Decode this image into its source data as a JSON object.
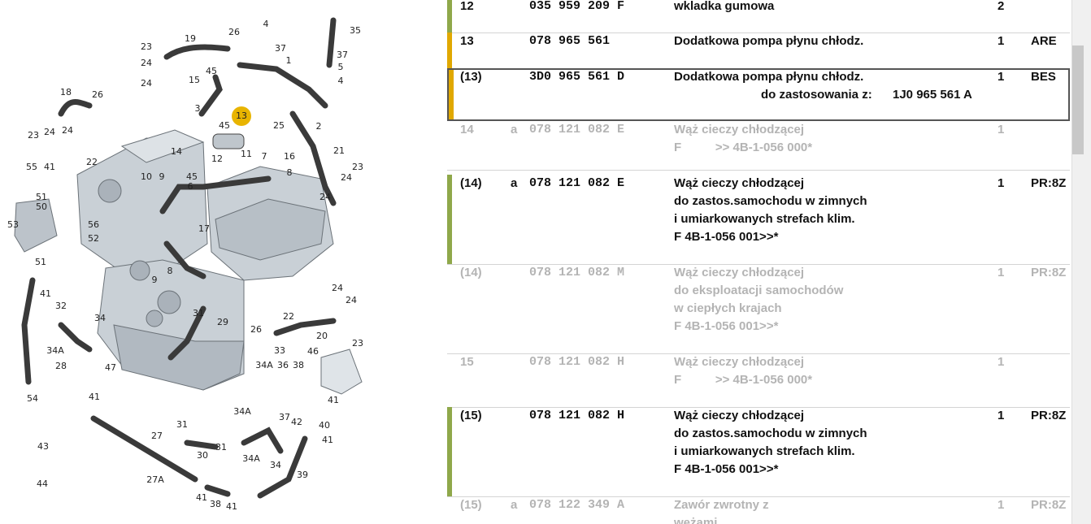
{
  "diagram": {
    "callouts": [
      "23",
      "19",
      "26",
      "4",
      "35",
      "37",
      "37",
      "1",
      "5",
      "24",
      "24",
      "45",
      "15",
      "4",
      "3",
      "13",
      "2",
      "25",
      "18",
      "26",
      "24",
      "24",
      "23",
      "22",
      "45",
      "14",
      "12",
      "7",
      "11",
      "16",
      "21",
      "10",
      "9",
      "45",
      "6",
      "8",
      "55",
      "41",
      "51",
      "50",
      "53",
      "56",
      "52",
      "51",
      "24",
      "23",
      "24",
      "17",
      "41",
      "8",
      "9",
      "32",
      "34",
      "31",
      "29",
      "24",
      "24",
      "22",
      "26",
      "20",
      "23",
      "34A",
      "33",
      "46",
      "28",
      "34A",
      "36",
      "38",
      "47",
      "54",
      "41",
      "37",
      "41",
      "42",
      "40",
      "41",
      "34A",
      "31",
      "31",
      "30",
      "34A",
      "34",
      "27",
      "39",
      "43",
      "44",
      "27A",
      "41",
      "38",
      "41"
    ]
  },
  "table": {
    "rows": [
      {
        "pos": "12",
        "part": "035 959 209 F",
        "desc": [
          "wkladka gumowa"
        ],
        "qty": "2"
      },
      {
        "pos": "13",
        "part": "078 965 561",
        "desc": [
          "Dodatkowa pompa płynu chłodz."
        ],
        "qty": "1",
        "remark": "ARE"
      },
      {
        "pos": "(13)",
        "part": "3D0 965 561 D",
        "desc": [
          "Dodatkowa pompa płynu chłodz."
        ],
        "usage_label": "do zastosowania z:",
        "usage_part": "1J0 965 561 A",
        "qty": "1",
        "remark": "BES"
      },
      {
        "pos": "14",
        "flag": "a",
        "part": "078 121 082 E",
        "desc": [
          "Wąż cieczy chłodzącej",
          "F          >> 4B-1-056 000*"
        ],
        "qty": "1"
      },
      {
        "pos": "(14)",
        "flag": "a",
        "part": "078 121 082 E",
        "desc": [
          "Wąż cieczy chłodzącej",
          "do zastos.samochodu w zimnych",
          "i umiarkowanych strefach klim.",
          "F 4B-1-056 001>>*"
        ],
        "qty": "1",
        "remark": "PR:8Z"
      },
      {
        "pos": "(14)",
        "part": "078 121 082 M",
        "desc": [
          "Wąż cieczy chłodzącej",
          "do eksploatacji samochodów",
          "w ciepłych krajach",
          "F 4B-1-056 001>>*"
        ],
        "qty": "1",
        "remark": "PR:8Z"
      },
      {
        "pos": "15",
        "part": "078 121 082 H",
        "desc": [
          "Wąż cieczy chłodzącej",
          "F          >> 4B-1-056 000*"
        ],
        "qty": "1"
      },
      {
        "pos": "(15)",
        "part": "078 121 082 H",
        "desc": [
          "Wąż cieczy chłodzącej",
          "do zastos.samochodu w zimnych",
          "i umiarkowanych strefach klim.",
          "F 4B-1-056 001>>*"
        ],
        "qty": "1",
        "remark": "PR:8Z"
      },
      {
        "pos": "(15)",
        "flag": "a",
        "part": "078 122 349 A",
        "desc": [
          "Zawór zwrotny z",
          "wężami"
        ],
        "qty": "1",
        "remark": "PR:8Z"
      }
    ]
  }
}
